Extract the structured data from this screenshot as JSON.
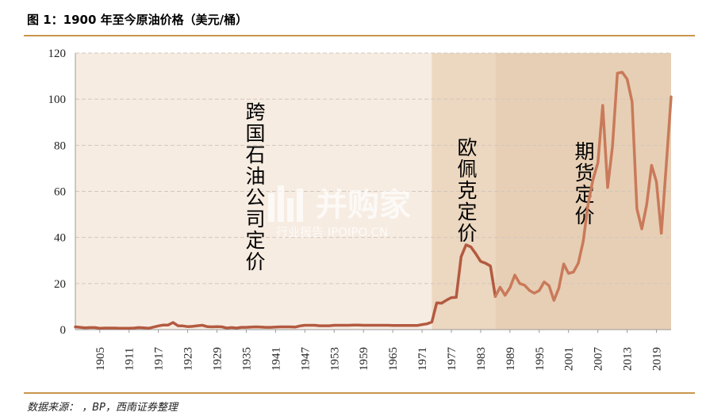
{
  "title": "图 1：1900 年至今原油价格（美元/桶）",
  "source": "数据来源：      ，BP，西南证券整理",
  "watermark": {
    "main": "并购家",
    "sub": "行业报告 IPOIPO.CN"
  },
  "colors": {
    "line": "#c97a5a",
    "line_dark": "#b35a40",
    "zone1": "#f6ece2",
    "zone2": "#ecd7c0",
    "zone3": "#e7cfb5",
    "rule": "#c8964b"
  },
  "chart_data": {
    "type": "line",
    "title": "",
    "xlabel": "",
    "ylabel": "",
    "xlim": [
      1900,
      2022
    ],
    "ylim": [
      0,
      120
    ],
    "yticks": [
      0,
      20,
      40,
      60,
      80,
      100,
      120
    ],
    "xticks": [
      1905,
      1911,
      1917,
      1923,
      1929,
      1935,
      1941,
      1947,
      1953,
      1959,
      1965,
      1971,
      1977,
      1983,
      1989,
      1995,
      2001,
      2007,
      2013,
      2019
    ],
    "grid": true,
    "regions": [
      {
        "label": "跨国石油公司定价",
        "start": 1900,
        "end": 1973
      },
      {
        "label": "欧佩克定价",
        "start": 1973,
        "end": 1986
      },
      {
        "label": "期货定价",
        "start": 1986,
        "end": 2022
      }
    ],
    "series": [
      {
        "x": [
          1900,
          1901,
          1902,
          1903,
          1904,
          1905,
          1906,
          1907,
          1908,
          1909,
          1910,
          1911,
          1912,
          1913,
          1914,
          1915,
          1916,
          1917,
          1918,
          1919,
          1920,
          1921,
          1922,
          1923,
          1924,
          1925,
          1926,
          1927,
          1928,
          1929,
          1930,
          1931,
          1932,
          1933,
          1934,
          1935,
          1936,
          1937,
          1938,
          1939,
          1940,
          1941,
          1942,
          1943,
          1944,
          1945,
          1946,
          1947,
          1948,
          1949,
          1950,
          1951,
          1952,
          1953,
          1954,
          1955,
          1956,
          1957,
          1958,
          1959,
          1960,
          1961,
          1962,
          1963,
          1964,
          1965,
          1966,
          1967,
          1968,
          1969,
          1970,
          1971,
          1972,
          1973,
          1974,
          1975,
          1976,
          1977,
          1978,
          1979,
          1980,
          1981,
          1982,
          1983,
          1984,
          1985,
          1986,
          1987,
          1988,
          1989,
          1990,
          1991,
          1992,
          1993,
          1994,
          1995,
          1996,
          1997,
          1998,
          1999,
          2000,
          2001,
          2002,
          2003,
          2004,
          2005,
          2006,
          2007,
          2008,
          2009,
          2010,
          2011,
          2012,
          2013,
          2014,
          2015,
          2016,
          2017,
          2018,
          2019,
          2020,
          2021,
          2022
        ],
        "values": [
          1.2,
          1.0,
          0.8,
          0.9,
          0.9,
          0.6,
          0.7,
          0.7,
          0.7,
          0.6,
          0.6,
          0.6,
          0.7,
          0.9,
          0.8,
          0.6,
          1.1,
          1.6,
          2.0,
          2.0,
          3.1,
          1.7,
          1.6,
          1.3,
          1.4,
          1.7,
          1.9,
          1.3,
          1.2,
          1.3,
          1.2,
          0.7,
          0.9,
          0.7,
          1.0,
          1.0,
          1.1,
          1.2,
          1.1,
          1.0,
          1.0,
          1.1,
          1.2,
          1.2,
          1.2,
          1.1,
          1.6,
          1.9,
          1.9,
          1.9,
          1.7,
          1.7,
          1.7,
          1.9,
          1.9,
          1.9,
          1.9,
          2.0,
          2.0,
          1.9,
          1.9,
          1.9,
          1.9,
          1.9,
          1.9,
          1.8,
          1.8,
          1.8,
          1.8,
          1.8,
          1.8,
          2.2,
          2.5,
          3.3,
          11.6,
          11.5,
          12.8,
          13.9,
          14.0,
          31.6,
          36.8,
          35.9,
          32.9,
          29.6,
          28.8,
          27.6,
          14.4,
          18.4,
          14.9,
          18.2,
          23.7,
          20.0,
          19.3,
          17.0,
          15.8,
          17.0,
          20.7,
          19.1,
          12.7,
          17.9,
          28.5,
          24.4,
          25.0,
          28.8,
          38.3,
          54.5,
          65.1,
          72.4,
          97.3,
          61.7,
          79.5,
          111.3,
          111.7,
          108.7,
          98.9,
          52.4,
          43.7,
          54.2,
          71.3,
          64.2,
          41.8,
          70.9,
          101.0
        ]
      }
    ]
  }
}
